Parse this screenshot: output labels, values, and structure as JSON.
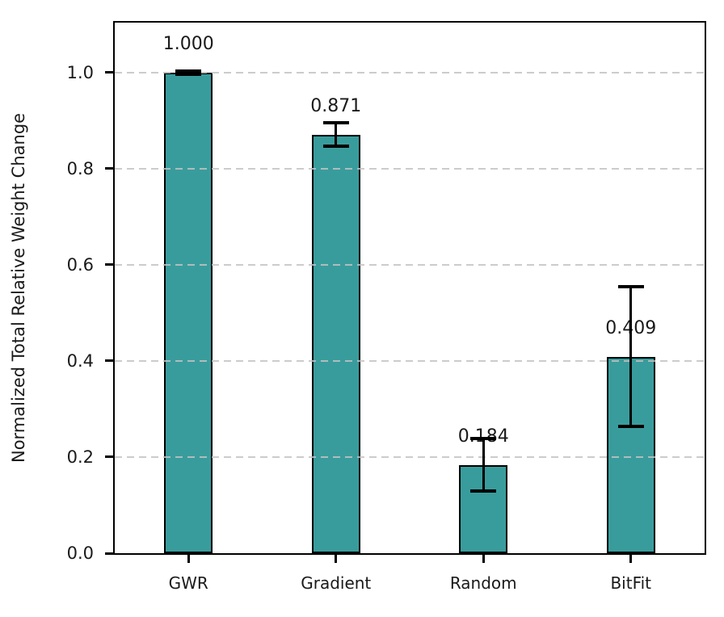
{
  "chart_data": {
    "type": "bar",
    "categories": [
      "GWR",
      "Gradient",
      "Random",
      "BitFit"
    ],
    "values": [
      1.0,
      0.871,
      0.184,
      0.409
    ],
    "errors": [
      0.004,
      0.024,
      0.055,
      0.145
    ],
    "bar_labels": [
      "1.000",
      "0.871",
      "0.184",
      "0.409"
    ],
    "title": "",
    "xlabel": "",
    "ylabel": "Normalized Total Relative Weight Change",
    "yticks": [
      0.0,
      0.2,
      0.4,
      0.6,
      0.8,
      1.0
    ],
    "ytick_labels": [
      "0.0",
      "0.2",
      "0.4",
      "0.6",
      "0.8",
      "1.0"
    ],
    "ylim": [
      0,
      1.104
    ],
    "grid": true,
    "grid_style": "dashed",
    "grid_color": "#c3c3c3",
    "bar_color": "#399c9c",
    "bar_edge_color": "#000000",
    "error_color": "#000000",
    "legend": null
  }
}
